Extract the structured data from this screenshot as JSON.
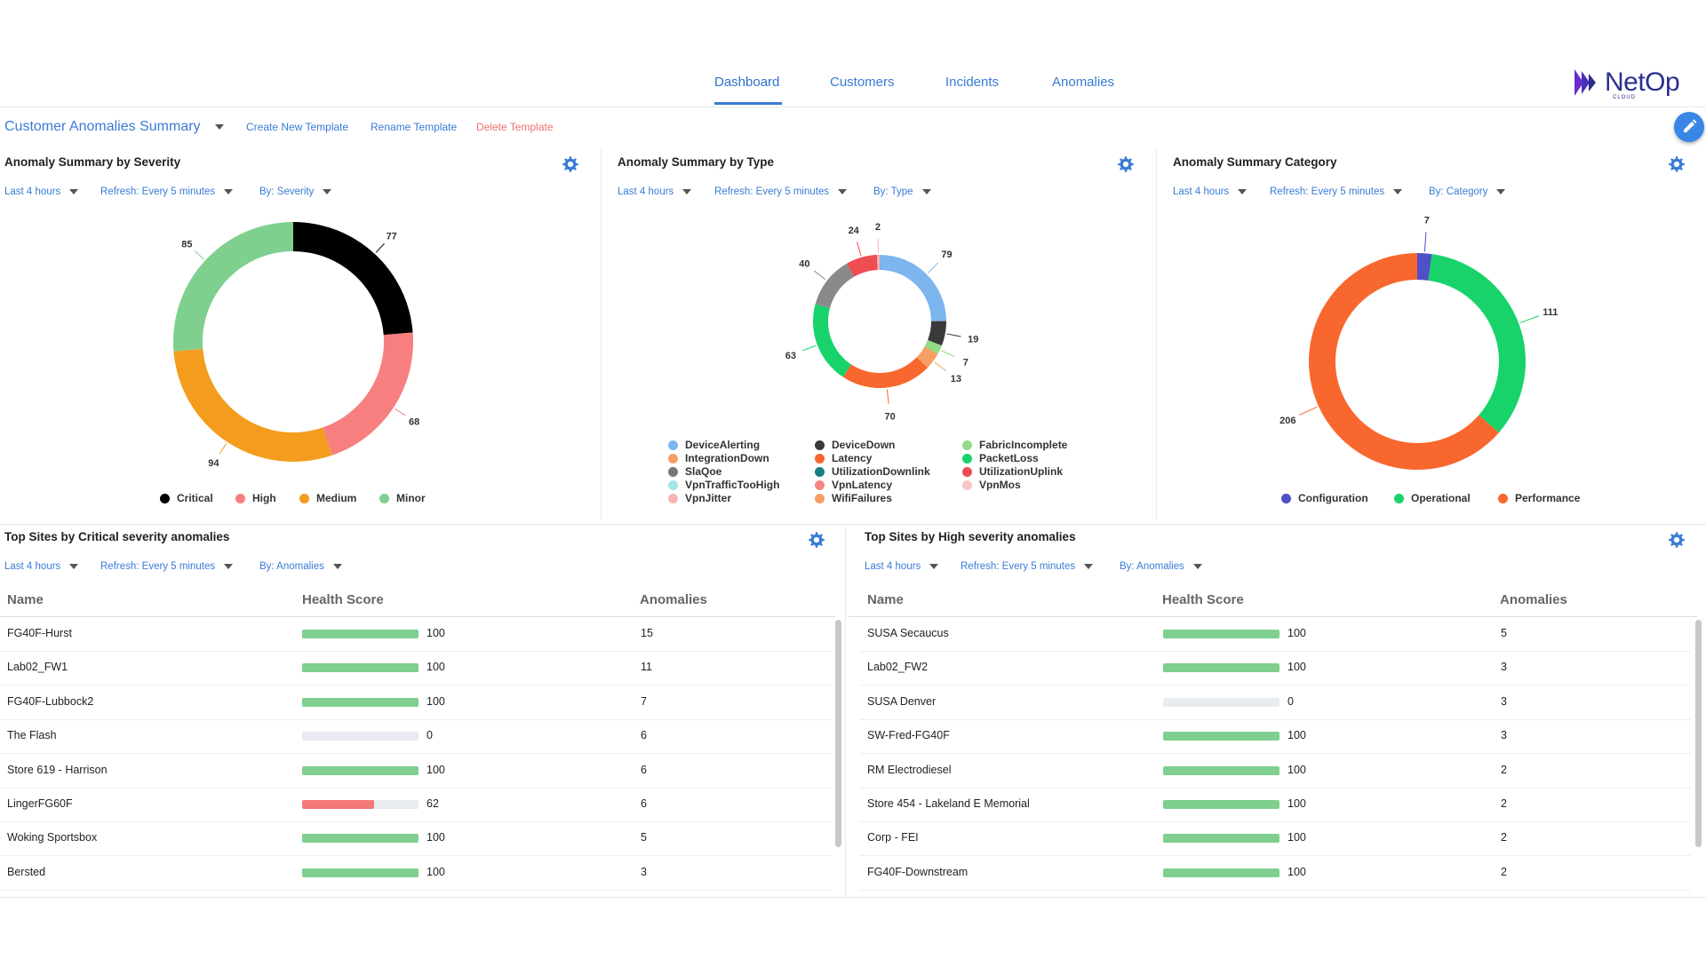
{
  "nav": {
    "tabs": [
      {
        "label": "Dashboard",
        "active": true
      },
      {
        "label": "Customers",
        "active": false
      },
      {
        "label": "Incidents",
        "active": false
      },
      {
        "label": "Anomalies",
        "active": false
      }
    ],
    "logo_text": "NetOp",
    "logo_sub": "CLOUD"
  },
  "toolbar": {
    "template_name": "Customer Anomalies Summary",
    "create_label": "Create New Template",
    "rename_label": "Rename Template",
    "delete_label": "Delete Template"
  },
  "colors": {
    "accent": "#3a7bd5",
    "delete": "#f07070",
    "bar_green": "#7fcf8f",
    "bar_red": "#f37878"
  },
  "panels": {
    "severity": {
      "title": "Anomaly Summary by Severity",
      "filters": [
        "Last 4 hours",
        "Refresh: Every 5 minutes",
        "By: Severity"
      ]
    },
    "type": {
      "title": "Anomaly Summary by Type",
      "filters": [
        "Last 4 hours",
        "Refresh: Every 5 minutes",
        "By: Type"
      ]
    },
    "category": {
      "title": "Anomaly Summary Category",
      "filters": [
        "Last 4 hours",
        "Refresh: Every 5 minutes",
        "By: Category"
      ]
    },
    "critical_sites": {
      "title": "Top Sites by Critical severity anomalies",
      "filters": [
        "Last 4 hours",
        "Refresh: Every 5 minutes",
        "By: Anomalies"
      ],
      "columns": [
        "Name",
        "Health Score",
        "Anomalies"
      ],
      "rows": [
        {
          "name": "FG40F-Hurst",
          "health": 100,
          "anomalies": 15
        },
        {
          "name": "Lab02_FW1",
          "health": 100,
          "anomalies": 11
        },
        {
          "name": "FG40F-Lubbock2",
          "health": 100,
          "anomalies": 7
        },
        {
          "name": "The Flash",
          "health": 0,
          "anomalies": 6
        },
        {
          "name": "Store 619 - Harrison",
          "health": 100,
          "anomalies": 6
        },
        {
          "name": "LingerFG60F",
          "health": 62,
          "anomalies": 6
        },
        {
          "name": "Woking Sportsbox",
          "health": 100,
          "anomalies": 5
        },
        {
          "name": "Bersted",
          "health": 100,
          "anomalies": 3
        }
      ]
    },
    "high_sites": {
      "title": "Top Sites by High severity anomalies",
      "filters": [
        "Last 4 hours",
        "Refresh: Every 5 minutes",
        "By: Anomalies"
      ],
      "columns": [
        "Name",
        "Health Score",
        "Anomalies"
      ],
      "rows": [
        {
          "name": "SUSA Secaucus",
          "health": 100,
          "anomalies": 5
        },
        {
          "name": "Lab02_FW2",
          "health": 100,
          "anomalies": 3
        },
        {
          "name": "SUSA Denver",
          "health": 0,
          "anomalies": 3
        },
        {
          "name": "SW-Fred-FG40F",
          "health": 100,
          "anomalies": 3
        },
        {
          "name": "RM Electrodiesel",
          "health": 100,
          "anomalies": 2
        },
        {
          "name": "Store 454 - Lakeland E Memorial",
          "health": 100,
          "anomalies": 2
        },
        {
          "name": "Corp - FEI",
          "health": 100,
          "anomalies": 2
        },
        {
          "name": "FG40F-Downstream",
          "health": 100,
          "anomalies": 2
        }
      ]
    }
  },
  "chart_data": [
    {
      "type": "pie",
      "title": "Anomaly Summary by Severity",
      "categories": [
        "Critical",
        "High",
        "Medium",
        "Minor"
      ],
      "values": [
        77,
        68,
        94,
        85
      ],
      "colors": [
        "#000000",
        "#f77f7f",
        "#f39c1e",
        "#7fd08e"
      ],
      "legend": "bottom"
    },
    {
      "type": "pie",
      "title": "Anomaly Summary by Type",
      "categories": [
        "DeviceAlerting",
        "DeviceDown",
        "FabricIncomplete",
        "IntegrationDown",
        "Latency",
        "PacketLoss",
        "SlaQoe",
        "UtilizationDownlink",
        "UtilizationUplink",
        "VpnTrafficTooHigh",
        "VpnLatency",
        "VpnMos",
        "VpnJitter",
        "WifiFailures"
      ],
      "slices": [
        {
          "label": "DeviceAlerting",
          "value": 79,
          "color": "#7db5ee"
        },
        {
          "label": "DeviceDown",
          "value": 19,
          "color": "#3a3a3a"
        },
        {
          "label": "FabricIncomplete",
          "value": 7,
          "color": "#8fdc85"
        },
        {
          "label": "WifiFailures",
          "value": 13,
          "color": "#f6a064"
        },
        {
          "label": "Latency",
          "value": 70,
          "color": "#f8672e"
        },
        {
          "label": "PacketLoss",
          "value": 63,
          "color": "#17d36a"
        },
        {
          "label": "SlaQoe",
          "value": 40,
          "color": "#8a8a8a"
        },
        {
          "label": "UtilizationUplink",
          "value": 24,
          "color": "#ee4d52"
        },
        {
          "label": "VpnJitter",
          "value": 2,
          "color": "#f7b4b4"
        }
      ],
      "legend_colors": {
        "DeviceAlerting": "#7db5ee",
        "DeviceDown": "#3a3a3a",
        "FabricIncomplete": "#8fdc85",
        "IntegrationDown": "#f6a064",
        "Latency": "#f8672e",
        "PacketLoss": "#17d36a",
        "SlaQoe": "#777777",
        "UtilizationDownlink": "#1a7f7f",
        "UtilizationUplink": "#ee4d52",
        "VpnTrafficTooHigh": "#a6e6e6",
        "VpnLatency": "#f48585",
        "VpnMos": "#f9c6c6",
        "VpnJitter": "#f7b4b4",
        "WifiFailures": "#f6a064"
      },
      "legend": "bottom"
    },
    {
      "type": "pie",
      "title": "Anomaly Summary Category",
      "categories": [
        "Configuration",
        "Operational",
        "Performance"
      ],
      "values": [
        7,
        111,
        206
      ],
      "colors": [
        "#4f4fc7",
        "#17d36a",
        "#f8672e"
      ],
      "legend": "bottom"
    }
  ]
}
